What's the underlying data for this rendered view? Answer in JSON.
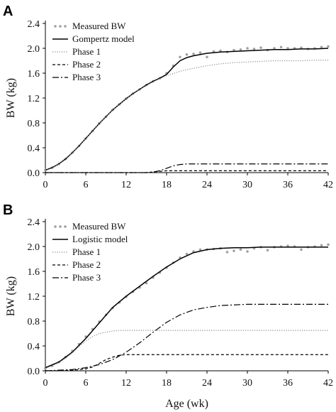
{
  "chart_data": [
    {
      "type": "line",
      "panel_label": "A",
      "xlabel": "",
      "ylabel": "BW (kg)",
      "xlim": [
        0,
        42
      ],
      "ylim": [
        0,
        2.4
      ],
      "xticks": [
        0,
        6,
        12,
        18,
        24,
        30,
        36,
        42
      ],
      "yticks": [
        0.0,
        0.4,
        0.8,
        1.2,
        1.6,
        2.0,
        2.4
      ],
      "legend_position": "top-left",
      "series": [
        {
          "name": "Measured BW",
          "style": "points",
          "color": "#a0a0a0",
          "x": [
            0,
            1,
            2,
            3,
            4,
            5,
            6,
            7,
            8,
            9,
            10,
            11,
            12,
            13,
            14,
            15,
            16,
            17,
            18,
            19,
            20,
            21,
            22,
            23,
            24,
            25,
            26,
            27,
            28,
            29,
            30,
            31,
            32,
            33,
            34,
            35,
            36,
            37,
            38,
            39,
            40,
            41,
            42
          ],
          "values": [
            0.04,
            0.08,
            0.14,
            0.22,
            0.32,
            0.43,
            0.55,
            0.67,
            0.79,
            0.9,
            1.01,
            1.1,
            1.19,
            1.27,
            1.34,
            1.41,
            1.47,
            1.52,
            1.6,
            1.72,
            1.86,
            1.9,
            1.91,
            1.93,
            1.86,
            1.95,
            1.96,
            1.94,
            1.97,
            1.98,
            2.0,
            1.99,
            2.01,
            1.97,
            2.0,
            2.02,
            2.0,
            2.0,
            2.01,
            1.99,
            2.0,
            2.02,
            2.03
          ]
        },
        {
          "name": "Gompertz model",
          "style": "solid",
          "color": "#000000",
          "x": [
            0,
            1,
            2,
            3,
            4,
            5,
            6,
            7,
            8,
            9,
            10,
            11,
            12,
            13,
            14,
            15,
            16,
            17,
            18,
            19,
            20,
            21,
            22,
            24,
            26,
            28,
            30,
            32,
            34,
            36,
            38,
            40,
            42
          ],
          "values": [
            0.04,
            0.08,
            0.14,
            0.22,
            0.32,
            0.43,
            0.55,
            0.67,
            0.79,
            0.9,
            1.01,
            1.1,
            1.19,
            1.27,
            1.34,
            1.41,
            1.47,
            1.52,
            1.58,
            1.7,
            1.8,
            1.85,
            1.88,
            1.92,
            1.94,
            1.95,
            1.96,
            1.97,
            1.98,
            1.98,
            1.99,
            1.99,
            2.0
          ]
        },
        {
          "name": "Phase 1",
          "style": "dotted",
          "color": "#8c8c8c",
          "x": [
            0,
            2,
            4,
            6,
            8,
            10,
            12,
            14,
            16,
            18,
            20,
            22,
            24,
            26,
            28,
            30,
            32,
            34,
            36,
            38,
            40,
            42
          ],
          "values": [
            0.04,
            0.14,
            0.32,
            0.55,
            0.79,
            1.01,
            1.19,
            1.34,
            1.46,
            1.56,
            1.63,
            1.68,
            1.72,
            1.75,
            1.77,
            1.78,
            1.79,
            1.8,
            1.8,
            1.8,
            1.81,
            1.81
          ]
        },
        {
          "name": "Phase 2",
          "style": "dashed",
          "color": "#000000",
          "x": [
            0,
            14,
            15,
            16,
            17,
            18,
            19,
            20,
            21,
            24,
            30,
            36,
            42
          ],
          "values": [
            0.0,
            0.0,
            0.0,
            0.01,
            0.02,
            0.03,
            0.03,
            0.03,
            0.03,
            0.03,
            0.03,
            0.03,
            0.03
          ]
        },
        {
          "name": "Phase 3",
          "style": "dashdot",
          "color": "#000000",
          "x": [
            0,
            15,
            16,
            17,
            18,
            19,
            20,
            21,
            22,
            24,
            30,
            36,
            42
          ],
          "values": [
            0.0,
            0.0,
            0.01,
            0.03,
            0.07,
            0.11,
            0.13,
            0.14,
            0.14,
            0.14,
            0.14,
            0.14,
            0.14
          ]
        }
      ]
    },
    {
      "type": "line",
      "panel_label": "B",
      "xlabel": "Age (wk)",
      "ylabel": "BW (kg)",
      "xlim": [
        0,
        42
      ],
      "ylim": [
        0,
        2.4
      ],
      "xticks": [
        0,
        6,
        12,
        18,
        24,
        30,
        36,
        42
      ],
      "yticks": [
        0.0,
        0.4,
        0.8,
        1.2,
        1.6,
        2.0,
        2.4
      ],
      "legend_position": "top-left",
      "series": [
        {
          "name": "Measured BW",
          "style": "points",
          "color": "#a0a0a0",
          "x": [
            0,
            1,
            2,
            3,
            4,
            5,
            6,
            7,
            8,
            9,
            10,
            11,
            12,
            13,
            14,
            15,
            16,
            17,
            18,
            19,
            20,
            21,
            22,
            23,
            24,
            25,
            26,
            27,
            28,
            29,
            30,
            31,
            32,
            33,
            34,
            35,
            36,
            37,
            38,
            39,
            40,
            41,
            42
          ],
          "values": [
            0.04,
            0.08,
            0.14,
            0.22,
            0.32,
            0.43,
            0.55,
            0.67,
            0.79,
            0.9,
            1.01,
            1.1,
            1.19,
            1.27,
            1.34,
            1.41,
            1.5,
            1.58,
            1.66,
            1.74,
            1.82,
            1.88,
            1.92,
            1.95,
            1.95,
            1.96,
            1.97,
            1.91,
            1.93,
            1.95,
            1.92,
            1.97,
            1.99,
            1.94,
            1.99,
            2.0,
            2.01,
            2.0,
            1.95,
            1.99,
            2.0,
            2.02,
            2.03
          ]
        },
        {
          "name": "Logistic model",
          "style": "solid",
          "color": "#000000",
          "x": [
            0,
            2,
            4,
            6,
            8,
            10,
            12,
            14,
            16,
            18,
            20,
            22,
            24,
            26,
            28,
            30,
            32,
            34,
            36,
            38,
            40,
            42
          ],
          "values": [
            0.05,
            0.14,
            0.3,
            0.52,
            0.77,
            1.02,
            1.2,
            1.36,
            1.52,
            1.67,
            1.8,
            1.9,
            1.95,
            1.97,
            1.98,
            1.98,
            1.99,
            1.99,
            1.99,
            1.99,
            1.99,
            1.99
          ]
        },
        {
          "name": "Phase 1",
          "style": "dotted",
          "color": "#8c8c8c",
          "x": [
            0,
            1,
            2,
            3,
            4,
            5,
            6,
            7,
            8,
            9,
            10,
            11,
            12,
            14,
            16,
            18,
            20,
            24,
            30,
            36,
            42
          ],
          "values": [
            0.04,
            0.08,
            0.13,
            0.2,
            0.29,
            0.39,
            0.48,
            0.55,
            0.6,
            0.62,
            0.64,
            0.65,
            0.65,
            0.65,
            0.65,
            0.65,
            0.65,
            0.65,
            0.65,
            0.65,
            0.65
          ]
        },
        {
          "name": "Phase 2",
          "style": "dashed",
          "color": "#000000",
          "x": [
            0,
            2,
            4,
            6,
            7,
            8,
            9,
            10,
            11,
            12,
            13,
            14,
            18,
            24,
            30,
            36,
            42
          ],
          "values": [
            0.0,
            0.0,
            0.01,
            0.03,
            0.06,
            0.12,
            0.18,
            0.22,
            0.25,
            0.26,
            0.26,
            0.26,
            0.26,
            0.26,
            0.26,
            0.26,
            0.26
          ]
        },
        {
          "name": "Phase 3",
          "style": "dashdot",
          "color": "#000000",
          "x": [
            0,
            2,
            4,
            6,
            8,
            10,
            12,
            14,
            16,
            18,
            20,
            22,
            24,
            26,
            28,
            30,
            32,
            36,
            42
          ],
          "values": [
            0.0,
            0.01,
            0.02,
            0.05,
            0.1,
            0.18,
            0.3,
            0.45,
            0.62,
            0.78,
            0.9,
            0.98,
            1.02,
            1.05,
            1.06,
            1.07,
            1.07,
            1.07,
            1.07
          ]
        }
      ]
    }
  ]
}
